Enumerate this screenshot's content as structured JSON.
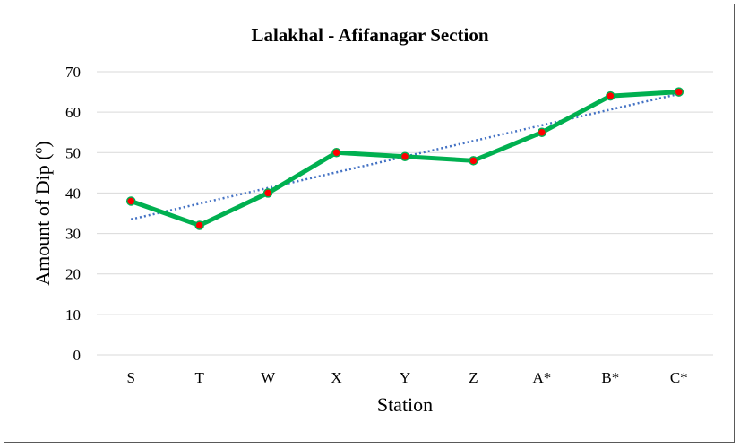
{
  "chart_data": {
    "type": "line",
    "title": "Lalakhal - Afifanagar Section",
    "xlabel": "Station",
    "ylabel": "Amount of Dip (º)",
    "categories": [
      "S",
      "T",
      "W",
      "X",
      "Y",
      "Z",
      "A*",
      "B*",
      "C*"
    ],
    "series": [
      {
        "values": [
          38,
          32,
          40,
          50,
          49,
          48,
          55,
          64,
          65
        ]
      }
    ],
    "trendline": {
      "type": "linear",
      "start": 33.5,
      "end": 64.5
    },
    "ylim": [
      0,
      70
    ],
    "yticks": [
      0,
      10,
      20,
      30,
      40,
      50,
      60,
      70
    ],
    "grid": true,
    "legend": "none",
    "colors": {
      "line": "#00b050",
      "marker_fill": "#ff0000",
      "marker_edge": "#00b050",
      "trend": "#4472c4"
    }
  }
}
